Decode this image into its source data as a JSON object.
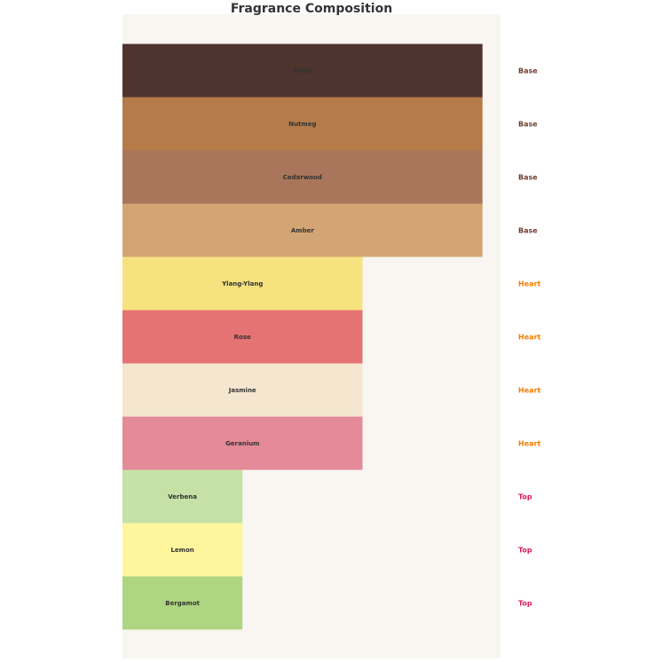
{
  "chart_data": {
    "type": "bar",
    "orientation": "horizontal",
    "title": "Fragrance Composition",
    "xlabel": "",
    "ylabel": "",
    "grid": false,
    "legend": "none",
    "xlim": [
      0,
      3.15
    ],
    "categories": [
      "Musk",
      "Nutmeg",
      "Cedarwood",
      "Amber",
      "Ylang-Ylang",
      "Rose",
      "Jasmine",
      "Geranium",
      "Verbena",
      "Lemon",
      "Bergamot"
    ],
    "values": [
      3,
      3,
      3,
      3,
      2,
      2,
      2,
      2,
      1,
      1,
      1
    ],
    "tiers": [
      "Base",
      "Base",
      "Base",
      "Base",
      "Heart",
      "Heart",
      "Heart",
      "Heart",
      "Top",
      "Top",
      "Top"
    ],
    "bar_colors": [
      "#4e342e",
      "#b57b4a",
      "#a9765b",
      "#d4a574",
      "#f6e27f",
      "#e57373",
      "#f5e6d0",
      "#e48a98",
      "#c5e1a5",
      "#fff59d",
      "#aed581"
    ],
    "tier_colors": {
      "Base": "#6d3d2d",
      "Heart": "#f57c00",
      "Top": "#d81b60"
    },
    "plot_background": "#f9f6f1"
  }
}
